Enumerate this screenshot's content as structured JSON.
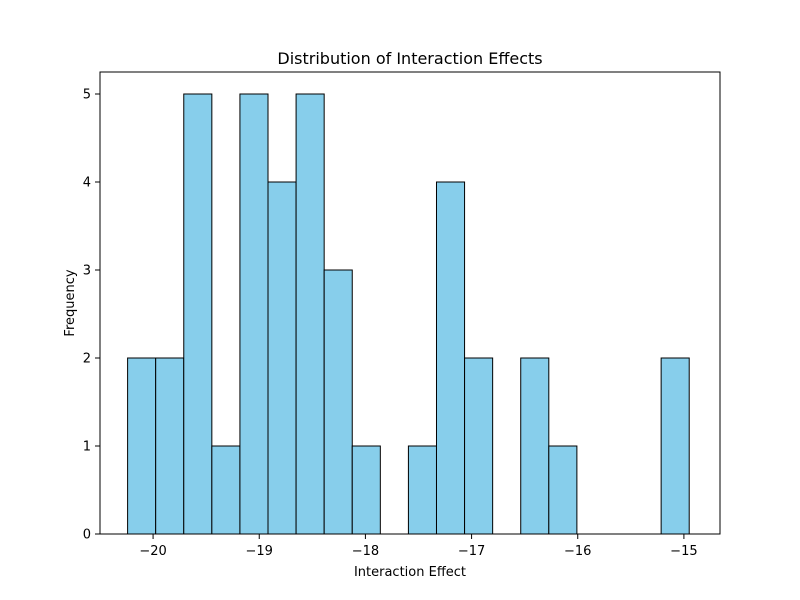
{
  "chart_data": {
    "type": "histogram",
    "title": "Distribution of Interaction Effects",
    "xlabel": "Interaction Effect",
    "ylabel": "Frequency",
    "bar_color": "#87CEEB",
    "edge_color": "#000000",
    "bin_start": -20.24,
    "bin_width": 0.2645,
    "counts": [
      2,
      2,
      5,
      1,
      5,
      4,
      5,
      3,
      1,
      0,
      1,
      4,
      2,
      0,
      2,
      1,
      0,
      0,
      0,
      2
    ],
    "xlim": [
      -20.5,
      -14.66
    ],
    "ylim": [
      0,
      5.25
    ],
    "x_ticks": [
      -20,
      -19,
      -18,
      -17,
      -16,
      -15
    ],
    "x_tick_labels": [
      "−20",
      "−19",
      "−18",
      "−17",
      "−16",
      "−15"
    ],
    "y_ticks": [
      0,
      1,
      2,
      3,
      4,
      5
    ],
    "y_tick_labels": [
      "0",
      "1",
      "2",
      "3",
      "4",
      "5"
    ],
    "grid": false
  }
}
